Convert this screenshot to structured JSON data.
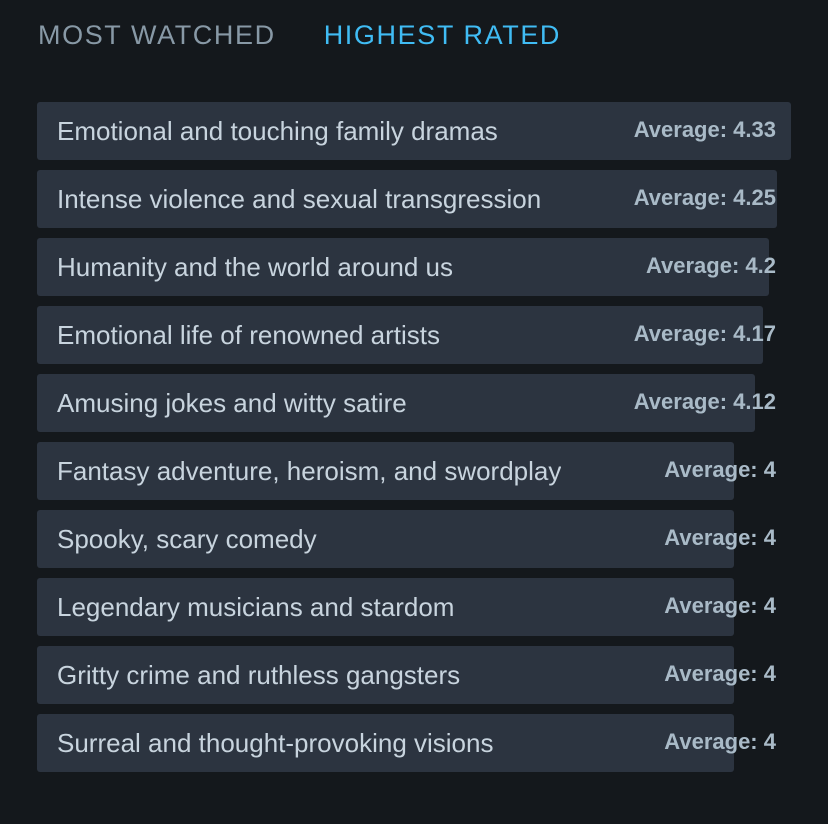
{
  "tabs": [
    {
      "label": "MOST WATCHED",
      "active": false
    },
    {
      "label": "HIGHEST RATED",
      "active": true
    }
  ],
  "colors": {
    "background": "#14181c",
    "bar": "#2c3440",
    "active_tab": "#40bcf4",
    "inactive_tab": "#8899a6"
  },
  "average_prefix": "Average: ",
  "rating_scale_max": 4.33,
  "items": [
    {
      "label": "Emotional and touching family dramas",
      "average": "4.33"
    },
    {
      "label": "Intense violence and sexual transgression",
      "average": "4.25"
    },
    {
      "label": "Humanity and the world around us",
      "average": "4.2"
    },
    {
      "label": "Emotional life of renowned artists",
      "average": "4.17"
    },
    {
      "label": "Amusing jokes and witty satire",
      "average": "4.12"
    },
    {
      "label": "Fantasy adventure, heroism, and swordplay",
      "average": "4"
    },
    {
      "label": "Spooky, scary comedy",
      "average": "4"
    },
    {
      "label": "Legendary musicians and stardom",
      "average": "4"
    },
    {
      "label": "Gritty crime and ruthless gangsters",
      "average": "4"
    },
    {
      "label": "Surreal and thought-provoking visions",
      "average": "4"
    }
  ]
}
